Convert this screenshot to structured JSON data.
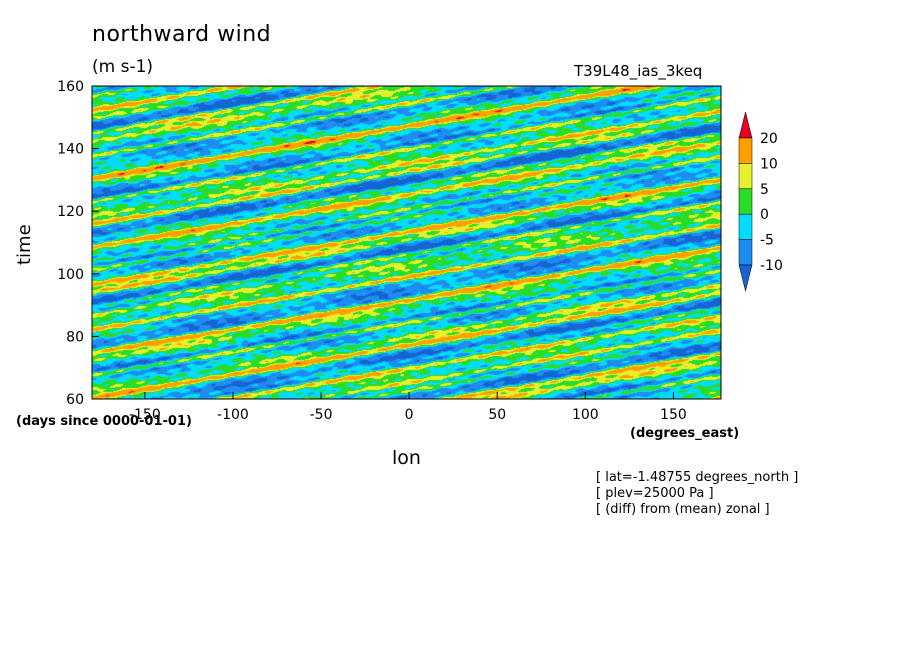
{
  "chart_data": {
    "type": "heatmap",
    "title": "northward wind",
    "units": "(m s-1)",
    "run_label": "T39L48_ias_3keq",
    "xlabel": "lon",
    "ylabel": "time",
    "x_units": "(degrees_east)",
    "y_units": "(days since 0000-01-01)",
    "xlim": [
      -180,
      177
    ],
    "ylim": [
      60,
      160
    ],
    "x_ticks": [
      -150,
      -100,
      -50,
      0,
      50,
      100,
      150
    ],
    "y_ticks": [
      60,
      80,
      100,
      120,
      140,
      160
    ],
    "x_tick_labels": [
      "-150",
      "-100",
      "-50",
      "0",
      "50",
      "100",
      "150"
    ],
    "y_tick_labels": [
      "60",
      "80",
      "100",
      "120",
      "140",
      "160"
    ],
    "contour_levels": [
      -10,
      -5,
      0,
      5,
      10,
      20
    ],
    "colorbar_labels": [
      "20",
      "10",
      "5",
      "0",
      "-5",
      "-10"
    ],
    "colors": [
      "#1464d2",
      "#1e8cf0",
      "#00dcff",
      "#28dc28",
      "#e6f02d",
      "#ffa000",
      "#e6001e"
    ],
    "notes": [
      "[ lat=-1.48755 degrees_north ]",
      "[ plev=25000 Pa ]",
      "[ (diff) from (mean) zonal ]"
    ]
  }
}
